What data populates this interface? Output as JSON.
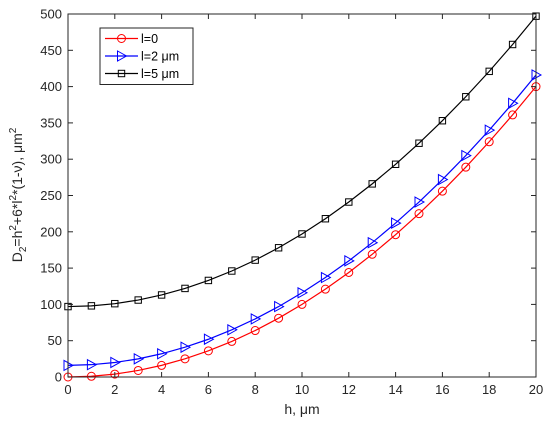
{
  "chart_data": {
    "type": "line",
    "xlabel": "h, μm",
    "ylabel": {
      "base": "D",
      "sub": "2",
      "eq": "=h",
      "sup1": "2",
      "mid": "+6*l",
      "sup2": "2",
      "tail": "*(1-ν), μm",
      "sup3": "2"
    },
    "xlim": [
      0,
      20
    ],
    "ylim": [
      0,
      500
    ],
    "xticks": [
      0,
      2,
      4,
      6,
      8,
      10,
      12,
      14,
      16,
      18,
      20
    ],
    "yticks": [
      0,
      50,
      100,
      150,
      200,
      250,
      300,
      350,
      400,
      450,
      500
    ],
    "grid": false,
    "legend_position": "top-left",
    "x": [
      0,
      1,
      2,
      3,
      4,
      5,
      6,
      7,
      8,
      9,
      10,
      11,
      12,
      13,
      14,
      15,
      16,
      17,
      18,
      19,
      20
    ],
    "series": [
      {
        "name": "l=0",
        "color": "#ff0000",
        "marker": "circle",
        "values": [
          0,
          1,
          4,
          9,
          16,
          25,
          36,
          49,
          64,
          81,
          100,
          121,
          144,
          169,
          196,
          225,
          256,
          289,
          324,
          361,
          400
        ]
      },
      {
        "name": "l=2 μm",
        "color": "#0000ff",
        "marker": "triangle-right",
        "values": [
          16,
          17,
          20,
          25,
          32,
          41,
          52,
          65,
          80,
          97,
          116,
          137,
          160,
          185,
          212,
          241,
          272,
          305,
          340,
          377,
          416
        ]
      },
      {
        "name": "l=5 μm",
        "color": "#000000",
        "marker": "square",
        "values": [
          97,
          98,
          101,
          106,
          113,
          122,
          133,
          146,
          161,
          178,
          197,
          218,
          241,
          266,
          293,
          322,
          353,
          386,
          421,
          458,
          497
        ]
      }
    ]
  }
}
